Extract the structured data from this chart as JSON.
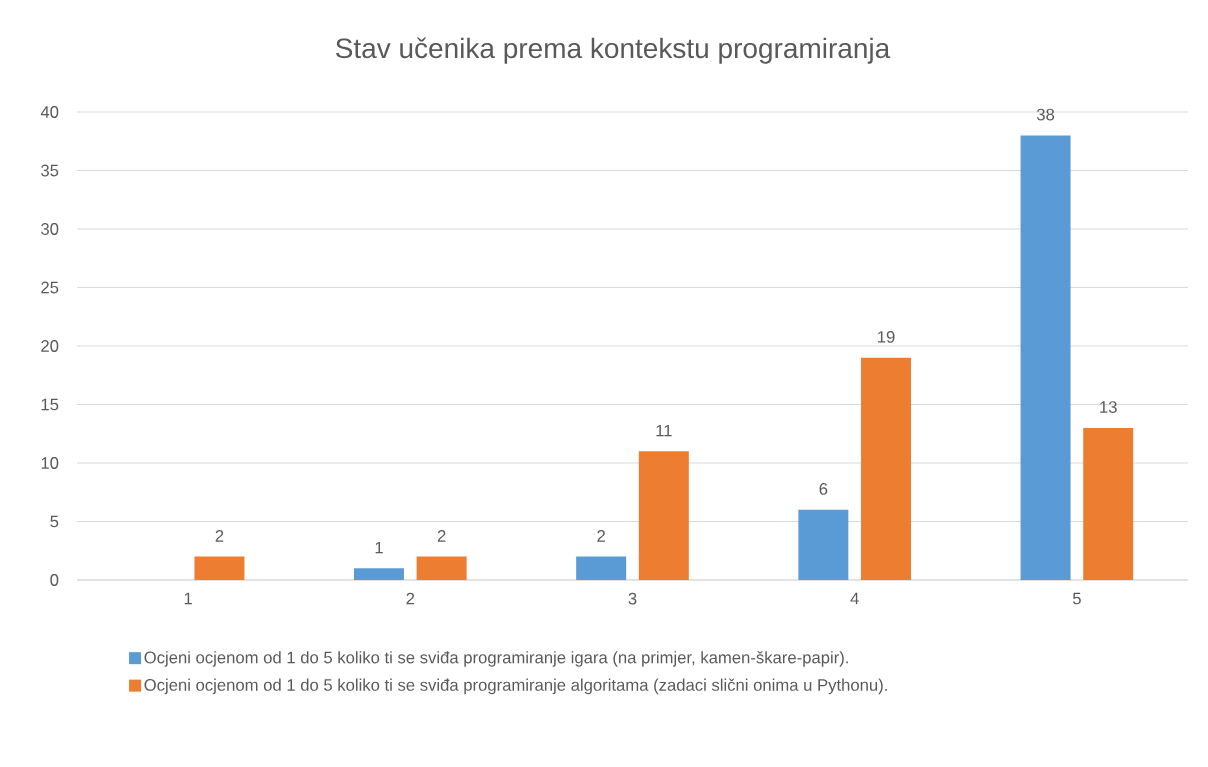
{
  "chart_data": {
    "type": "bar",
    "title": "Stav učenika prema kontekstu programiranja",
    "categories": [
      "1",
      "2",
      "3",
      "4",
      "5"
    ],
    "series": [
      {
        "name": "Ocjeni ocjenom od 1 do 5 koliko ti se sviđa programiranje igara (na primjer, kamen-škare-papir).",
        "color": "#5b9bd5",
        "values": [
          null,
          1,
          2,
          6,
          38
        ]
      },
      {
        "name": "Ocjeni ocjenom od 1 do 5 koliko ti se sviđa programiranje algoritama (zadaci slični onima u Pythonu).",
        "color": "#ed7d31",
        "values": [
          2,
          2,
          11,
          19,
          13
        ]
      }
    ],
    "ylim": [
      0,
      40
    ],
    "yticks": [
      0,
      5,
      10,
      15,
      20,
      25,
      30,
      35,
      40
    ],
    "grid": "y",
    "legend": "bottom",
    "data_labels": true
  }
}
